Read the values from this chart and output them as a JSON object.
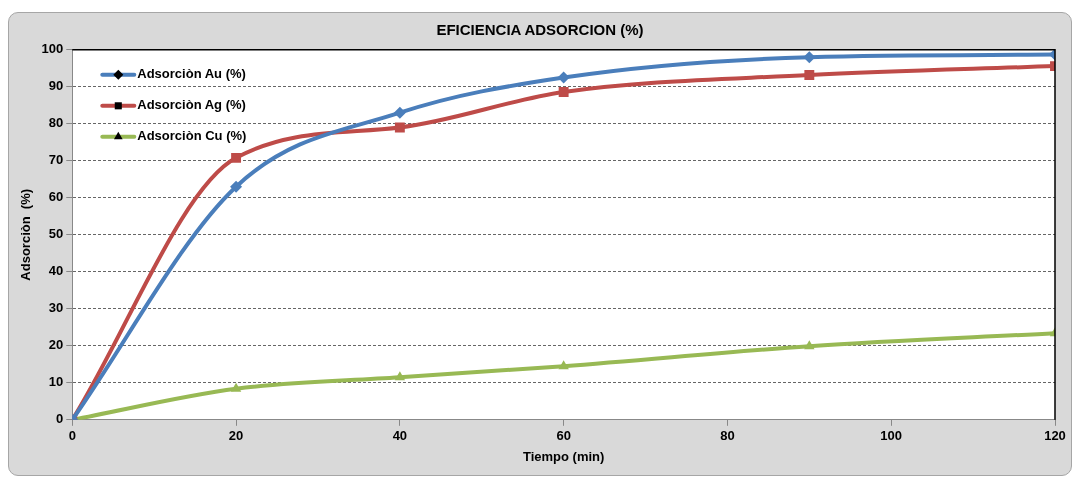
{
  "chart_data": {
    "type": "line",
    "title": "EFICIENCIA ADSORCION  (%)",
    "xlabel": "Tiempo (min)",
    "ylabel": "Adsorciòn  (%)",
    "x": [
      0,
      20,
      40,
      60,
      90,
      120
    ],
    "series": [
      {
        "name": "Adsorciòn Au (%)",
        "color": "#4a7ebb",
        "marker": "diamond",
        "values": [
          0,
          63,
          83,
          92.5,
          98,
          98.7
        ]
      },
      {
        "name": "Adsorciòn Ag (%)",
        "color": "#be4b48",
        "marker": "square",
        "values": [
          0,
          70.8,
          79,
          88.6,
          93.2,
          95.6
        ]
      },
      {
        "name": "Adsorciòn Cu (%)",
        "color": "#98b954",
        "marker": "triangle",
        "values": [
          0,
          8.4,
          11.5,
          14.5,
          19.9,
          23.4
        ]
      }
    ],
    "xlim": [
      0,
      120
    ],
    "xticks": [
      0,
      20,
      40,
      60,
      80,
      100,
      120
    ],
    "ylim": [
      0,
      100
    ],
    "yticks": [
      0,
      10,
      20,
      30,
      40,
      50,
      60,
      70,
      80,
      90,
      100
    ],
    "grid": "y",
    "legend": "top left",
    "line_style": "solid"
  }
}
